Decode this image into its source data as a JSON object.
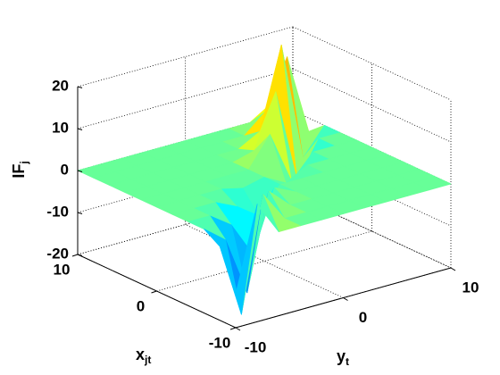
{
  "chart_data": {
    "type": "mesh3d",
    "x": [
      -10,
      -8,
      -6,
      -4,
      -2,
      0,
      2,
      4,
      6,
      8,
      10
    ],
    "y": [
      -10,
      -8,
      -6,
      -4,
      -2,
      0,
      2,
      4,
      6,
      8,
      10
    ],
    "z": [
      [
        -12,
        -2.4,
        0,
        0,
        0,
        0,
        0,
        0,
        0,
        0,
        0
      ],
      [
        8,
        -20,
        -4,
        0,
        0,
        0,
        0,
        0,
        0,
        0,
        0
      ],
      [
        0,
        7.2,
        -18,
        -3.6,
        0,
        0,
        0,
        0,
        0,
        0,
        0
      ],
      [
        0,
        0,
        4.8,
        -12,
        -2.4,
        0,
        0,
        0,
        0,
        0,
        0
      ],
      [
        0,
        0,
        0,
        2.4,
        -6,
        -1.2,
        0,
        0,
        0,
        0,
        0
      ],
      [
        0,
        0,
        0,
        0,
        0,
        0,
        0,
        0,
        0,
        0,
        0
      ],
      [
        0,
        0,
        0,
        0,
        0,
        -2.8,
        7,
        1.4,
        0,
        0,
        0
      ],
      [
        0,
        0,
        0,
        0,
        0,
        0,
        -5.6,
        14,
        2.8,
        0,
        0
      ],
      [
        0,
        0,
        0,
        0,
        0,
        0,
        0,
        -8.8,
        22,
        4.4,
        0
      ],
      [
        0,
        0,
        0,
        0,
        0,
        0,
        0,
        0,
        -6.4,
        16,
        3.2
      ],
      [
        0,
        0,
        0,
        0,
        0,
        0,
        0,
        0,
        0,
        -3.2,
        8
      ]
    ],
    "xlabel": {
      "text": "x",
      "sub": "jt"
    },
    "ylabel": {
      "text": "y",
      "sub": "t"
    },
    "zlabel": {
      "text": "IF",
      "sub": "j"
    },
    "xlim": [
      -10,
      10
    ],
    "ylim": [
      -10,
      10
    ],
    "zlim": [
      -20,
      20
    ],
    "xticks": [
      -10,
      0,
      10
    ],
    "yticks": [
      -10,
      0,
      10
    ],
    "zticks": [
      -20,
      -10,
      0,
      10,
      20
    ],
    "grid": true,
    "colormap": "jet"
  }
}
